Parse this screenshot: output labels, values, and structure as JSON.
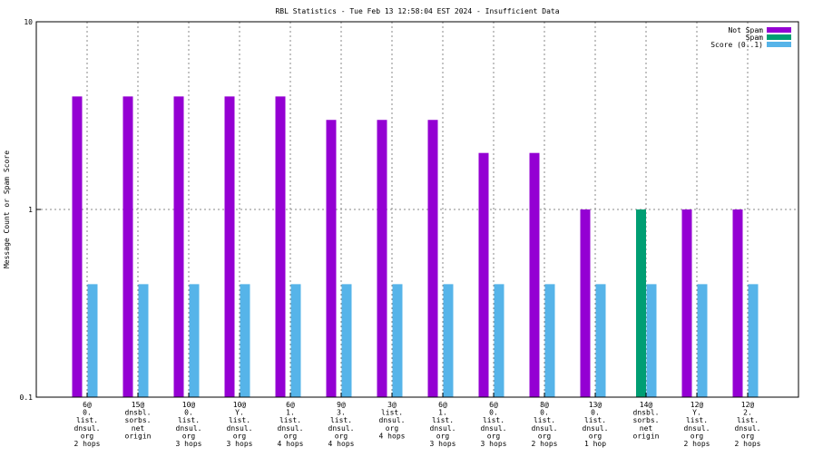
{
  "chart_data": {
    "type": "bar",
    "title": "RBL Statistics - Tue Feb 13 12:58:04 EST 2024 - Insufficient Data",
    "ylabel": "Message Count or Spam Score",
    "xlabel": "",
    "yscale": "log",
    "ylim": [
      0.1,
      10
    ],
    "yticks": [
      {
        "value": 0.1,
        "label": "0.1"
      },
      {
        "value": 1,
        "label": "1"
      },
      {
        "value": 10,
        "label": "10"
      }
    ],
    "grid": true,
    "legend_position": "top-right",
    "categories": [
      [
        "6@",
        "0.",
        "list.",
        "dnsul.",
        "org",
        "2 hops"
      ],
      [
        "15@",
        "dnsbl.",
        "sorbs.",
        "net",
        "origin"
      ],
      [
        "10@",
        "0.",
        "list.",
        "dnsul.",
        "org",
        "3 hops"
      ],
      [
        "10@",
        "Y.",
        "list.",
        "dnsul.",
        "org",
        "3 hops"
      ],
      [
        "6@",
        "1.",
        "list.",
        "dnsul.",
        "org",
        "4 hops"
      ],
      [
        "9@",
        "3.",
        "list.",
        "dnsul.",
        "org",
        "4 hops"
      ],
      [
        "3@",
        "list.",
        "dnsul.",
        "org",
        "4 hops"
      ],
      [
        "6@",
        "1.",
        "list.",
        "dnsul.",
        "org",
        "3 hops"
      ],
      [
        "6@",
        "0.",
        "list.",
        "dnsul.",
        "org",
        "3 hops"
      ],
      [
        "8@",
        "0.",
        "list.",
        "dnsul.",
        "org",
        "2 hops"
      ],
      [
        "13@",
        "0.",
        "list.",
        "dnsul.",
        "org",
        "1 hop"
      ],
      [
        "14@",
        "dnsbl.",
        "sorbs.",
        "net",
        "origin"
      ],
      [
        "12@",
        "Y.",
        "list.",
        "dnsul.",
        "org",
        "2 hops"
      ],
      [
        "12@",
        "2.",
        "list.",
        "dnsul.",
        "org",
        "2 hops"
      ]
    ],
    "series": [
      {
        "name": "Not Spam",
        "color": "#9400d3",
        "values": [
          4,
          4,
          4,
          4,
          4,
          3,
          3,
          3,
          2,
          2,
          1,
          null,
          1,
          1
        ]
      },
      {
        "name": "Spam",
        "color": "#009e73",
        "values": [
          null,
          null,
          null,
          null,
          null,
          null,
          null,
          null,
          null,
          null,
          null,
          1,
          null,
          null
        ]
      },
      {
        "name": "Score (0..1)",
        "color": "#56b4e9",
        "values": [
          0.4,
          0.4,
          0.4,
          0.4,
          0.4,
          0.4,
          0.4,
          0.4,
          0.4,
          0.4,
          0.4,
          0.4,
          0.4,
          0.4
        ]
      }
    ]
  }
}
